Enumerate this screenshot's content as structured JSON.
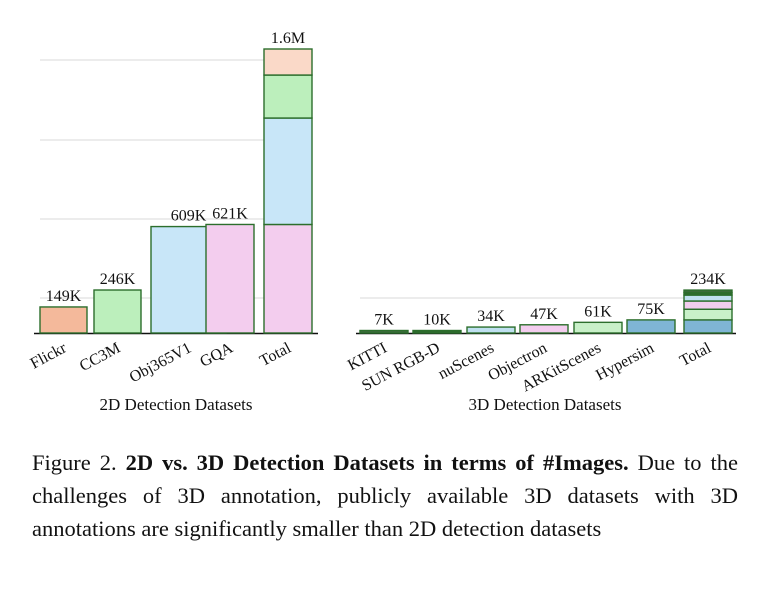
{
  "chart_data": [
    {
      "type": "bar",
      "xlabel": "2D Detection Datasets",
      "categories": [
        "Flickr",
        "CC3M",
        "Obj365V1",
        "GQA",
        "Total"
      ],
      "value_labels": [
        "149K",
        "246K",
        "609K",
        "621K",
        "1.6M"
      ],
      "values": [
        149000,
        246000,
        609000,
        621000,
        1625000
      ],
      "colors": [
        "#f4b99b",
        "#bcefbc",
        "#c8e6f8",
        "#f3cdee",
        "stacked"
      ],
      "total_stack": [
        {
          "dataset": "GQA",
          "value": 621000,
          "color": "#f3cdee"
        },
        {
          "dataset": "Obj365V1",
          "value": 609000,
          "color": "#c8e6f8"
        },
        {
          "dataset": "CC3M",
          "value": 246000,
          "color": "#bcefbc"
        },
        {
          "dataset": "Flickr",
          "value": 149000,
          "color": "#fad9c8"
        }
      ],
      "ylim": [
        0,
        1625000
      ],
      "grid": true
    },
    {
      "type": "bar",
      "xlabel": "3D Detection Datasets",
      "categories": [
        "KITTI",
        "SUN RGB-D",
        "nuScenes",
        "Objectron",
        "ARKitScenes",
        "Hypersim",
        "Total"
      ],
      "value_labels": [
        "7K",
        "10K",
        "34K",
        "47K",
        "61K",
        "75K",
        "234K"
      ],
      "values": [
        7000,
        10000,
        34000,
        47000,
        61000,
        75000,
        234000
      ],
      "colors": [
        "#3d6a3d",
        "#2e6a2e",
        "#bfe0f0",
        "#f3cdee",
        "#c8f0c8",
        "#7fb5d5",
        "stacked"
      ],
      "total_stack": [
        {
          "dataset": "Hypersim",
          "value": 75000,
          "color": "#7fb5d5"
        },
        {
          "dataset": "ARKitScenes",
          "value": 61000,
          "color": "#c8f0c8"
        },
        {
          "dataset": "Objectron",
          "value": 47000,
          "color": "#f3cdee"
        },
        {
          "dataset": "nuScenes",
          "value": 34000,
          "color": "#bfe0f0"
        },
        {
          "dataset": "SUN RGB-D",
          "value": 10000,
          "color": "#2e6a2e"
        },
        {
          "dataset": "KITTI",
          "value": 7000,
          "color": "#3d6a3d"
        }
      ],
      "ylim": [
        0,
        1625000
      ],
      "grid": true
    }
  ],
  "caption": {
    "label": "Figure 2.",
    "title": "2D vs. 3D Detection Datasets in terms of #Images.",
    "text": "Due to the challenges of 3D annotation, publicly available 3D datasets with 3D annotations are significantly smaller than 2D detection datasets"
  },
  "colors": {
    "bar_stroke": "#2c6e2c",
    "grid": "#d9d9d9",
    "axis": "#111111"
  }
}
